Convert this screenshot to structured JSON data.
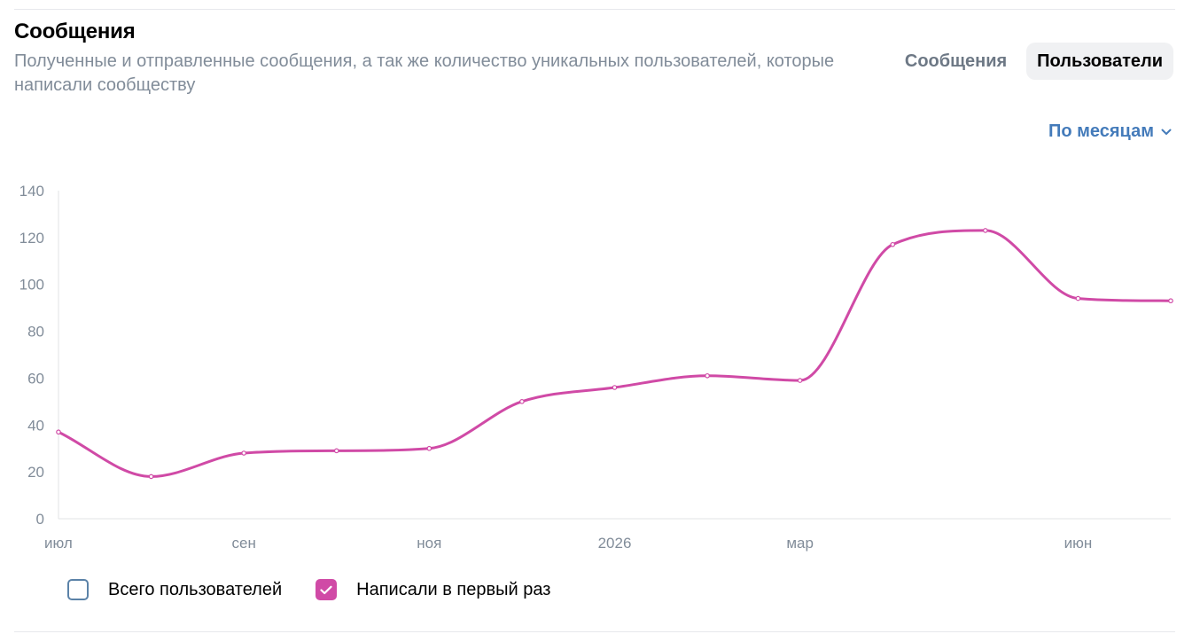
{
  "header": {
    "title": "Сообщения",
    "subtitle": "Полученные и отправленные сообщения, а так же количество уникальных пользователей, которые написали сообществу"
  },
  "tabs": [
    {
      "label": "Сообщения",
      "active": false
    },
    {
      "label": "Пользователи",
      "active": true
    }
  ],
  "period": {
    "label": "По месяцам",
    "icon": "chevron-down-icon"
  },
  "legend": [
    {
      "label": "Всего пользователей",
      "checked": false,
      "color": "#5b82a8"
    },
    {
      "label": "Написали в первый раз",
      "checked": true,
      "color": "#d04aa6"
    }
  ],
  "chart_data": {
    "type": "line",
    "x": [
      "2025-07",
      "2025-08",
      "2025-09",
      "2025-10",
      "2025-11",
      "2025-12",
      "2026-01",
      "2026-02",
      "2026-03",
      "2026-04",
      "2026-05",
      "2026-06",
      "2026-07"
    ],
    "x_tick_labels": [
      "июл",
      "",
      "сен",
      "",
      "ноя",
      "",
      "2026",
      "",
      "мар",
      "",
      "",
      "июн",
      ""
    ],
    "series": [
      {
        "name": "Написали в первый раз",
        "color": "#d04aa6",
        "values": [
          37,
          18,
          28,
          29,
          30,
          50,
          56,
          61,
          59,
          117,
          123,
          94,
          93
        ]
      }
    ],
    "y_ticks": [
      0,
      20,
      40,
      60,
      80,
      100,
      120,
      140
    ],
    "ylim": [
      0,
      140
    ],
    "grid": false,
    "legend_position": "bottom-left"
  }
}
